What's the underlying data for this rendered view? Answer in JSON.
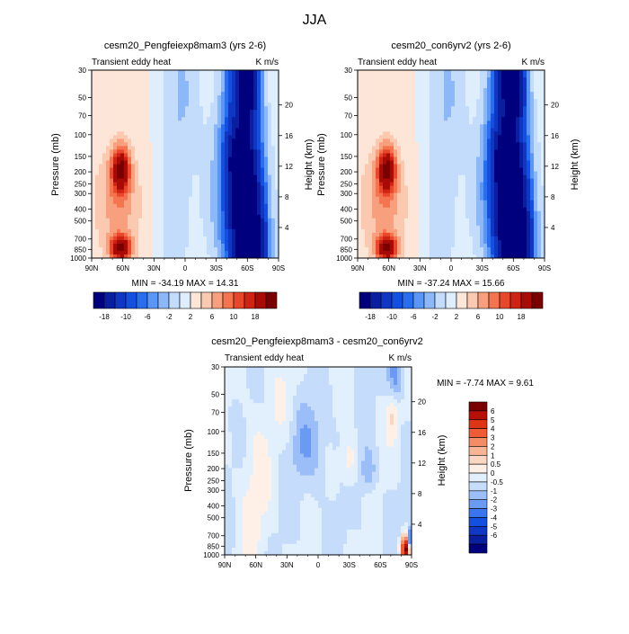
{
  "page": {
    "title": "JJA"
  },
  "scales": {
    "pressure_ticks": [
      "30",
      "50",
      "70",
      "100",
      "150",
      "200",
      "250",
      "300",
      "400",
      "500",
      "700",
      "850",
      "1000"
    ],
    "pressure_values": [
      30,
      50,
      70,
      100,
      150,
      200,
      250,
      300,
      400,
      500,
      700,
      850,
      1000
    ],
    "height_ticks": [
      "20",
      "16",
      "12",
      "8",
      "4"
    ],
    "height_values": [
      20,
      16,
      12,
      8,
      4
    ],
    "lat_ticks": [
      "90N",
      "60N",
      "30N",
      "0",
      "30S",
      "60S",
      "90S"
    ],
    "lat_values": [
      90,
      60,
      30,
      0,
      -30,
      -60,
      -90
    ]
  },
  "colorbars": {
    "full": {
      "colors": [
        "#00007f",
        "#0a1fa0",
        "#0f37c4",
        "#1450e0",
        "#2a6ef0",
        "#5a96f5",
        "#8cb8f8",
        "#c3dcfb",
        "#deeefd",
        "#fde5d8",
        "#fbc8b0",
        "#f8a07e",
        "#f3744e",
        "#e9472b",
        "#cf2414",
        "#a80b06",
        "#7a0000"
      ],
      "labels": [
        "-18",
        "-10",
        "-6",
        "-2",
        "2",
        "6",
        "10",
        "18"
      ]
    },
    "diff": {
      "colors": [
        "#00007f",
        "#0a1fa0",
        "#0f37c4",
        "#1450e0",
        "#3a75ee",
        "#6b9af4",
        "#9bbef8",
        "#c5dcfb",
        "#e2effd",
        "#fef0e6",
        "#fbd6c0",
        "#f8b596",
        "#f48c66",
        "#ee5b35",
        "#de3516",
        "#b80f08",
        "#7a0000"
      ],
      "labels": [
        "-6",
        "-5",
        "-4",
        "-3",
        "-2",
        "-1",
        "-0.5",
        "0",
        "0.5",
        "1",
        "2",
        "3",
        "4",
        "5",
        "6"
      ]
    }
  },
  "panels": [
    {
      "title": "cesm20_Pengfeiexp8mam3 (yrs 2-6)",
      "left_label": "Transient eddy heat",
      "right_label": "K m/s",
      "ylabel": "Pressure (mb)",
      "y2label": "Height (km)",
      "minmax": "MIN = -34.19  MAX =  14.31"
    },
    {
      "title": "cesm20_con6yrv2 (yrs 2-6)",
      "left_label": "Transient eddy heat",
      "right_label": "K m/s",
      "ylabel": "Pressure (mb)",
      "y2label": "Height (km)",
      "minmax": "MIN = -37.24  MAX =  15.66"
    },
    {
      "title": "cesm20_Pengfeiexp8mam3 - cesm20_con6yrv2",
      "left_label": "Transient eddy heat",
      "right_label": "K m/s",
      "ylabel": "Pressure (mb)",
      "y2label": "Height (km)",
      "minmax": "MIN =  -7.74  MAX =   9.61"
    }
  ],
  "chart_data": [
    {
      "type": "heatmap",
      "title": "cesm20_Pengfeiexp8mam3 (yrs 2-6)",
      "subtitle": "Transient eddy heat",
      "units": "K m/s",
      "xlabel": "",
      "ylabel": "Pressure (mb)",
      "y2label": "Height (km)",
      "xlim": [
        90,
        -90
      ],
      "ylim": [
        1000,
        30
      ],
      "yscale": "log",
      "min": -34.19,
      "max": 14.31,
      "levels": [
        -18,
        -10,
        -6,
        -2,
        2,
        6,
        10,
        18
      ]
    },
    {
      "type": "heatmap",
      "title": "cesm20_con6yrv2 (yrs 2-6)",
      "subtitle": "Transient eddy heat",
      "units": "K m/s",
      "xlabel": "",
      "ylabel": "Pressure (mb)",
      "y2label": "Height (km)",
      "xlim": [
        90,
        -90
      ],
      "ylim": [
        1000,
        30
      ],
      "yscale": "log",
      "min": -37.24,
      "max": 15.66,
      "levels": [
        -18,
        -10,
        -6,
        -2,
        2,
        6,
        10,
        18
      ]
    },
    {
      "type": "heatmap",
      "title": "cesm20_Pengfeiexp8mam3 - cesm20_con6yrv2",
      "subtitle": "Transient eddy heat",
      "units": "K m/s",
      "xlabel": "",
      "ylabel": "Pressure (mb)",
      "y2label": "Height (km)",
      "xlim": [
        90,
        -90
      ],
      "ylim": [
        1000,
        30
      ],
      "yscale": "log",
      "min": -7.74,
      "max": 9.61,
      "levels": [
        -6,
        -5,
        -4,
        -3,
        -2,
        -1,
        -0.5,
        0,
        0.5,
        1,
        2,
        3,
        4,
        5,
        6
      ]
    }
  ]
}
